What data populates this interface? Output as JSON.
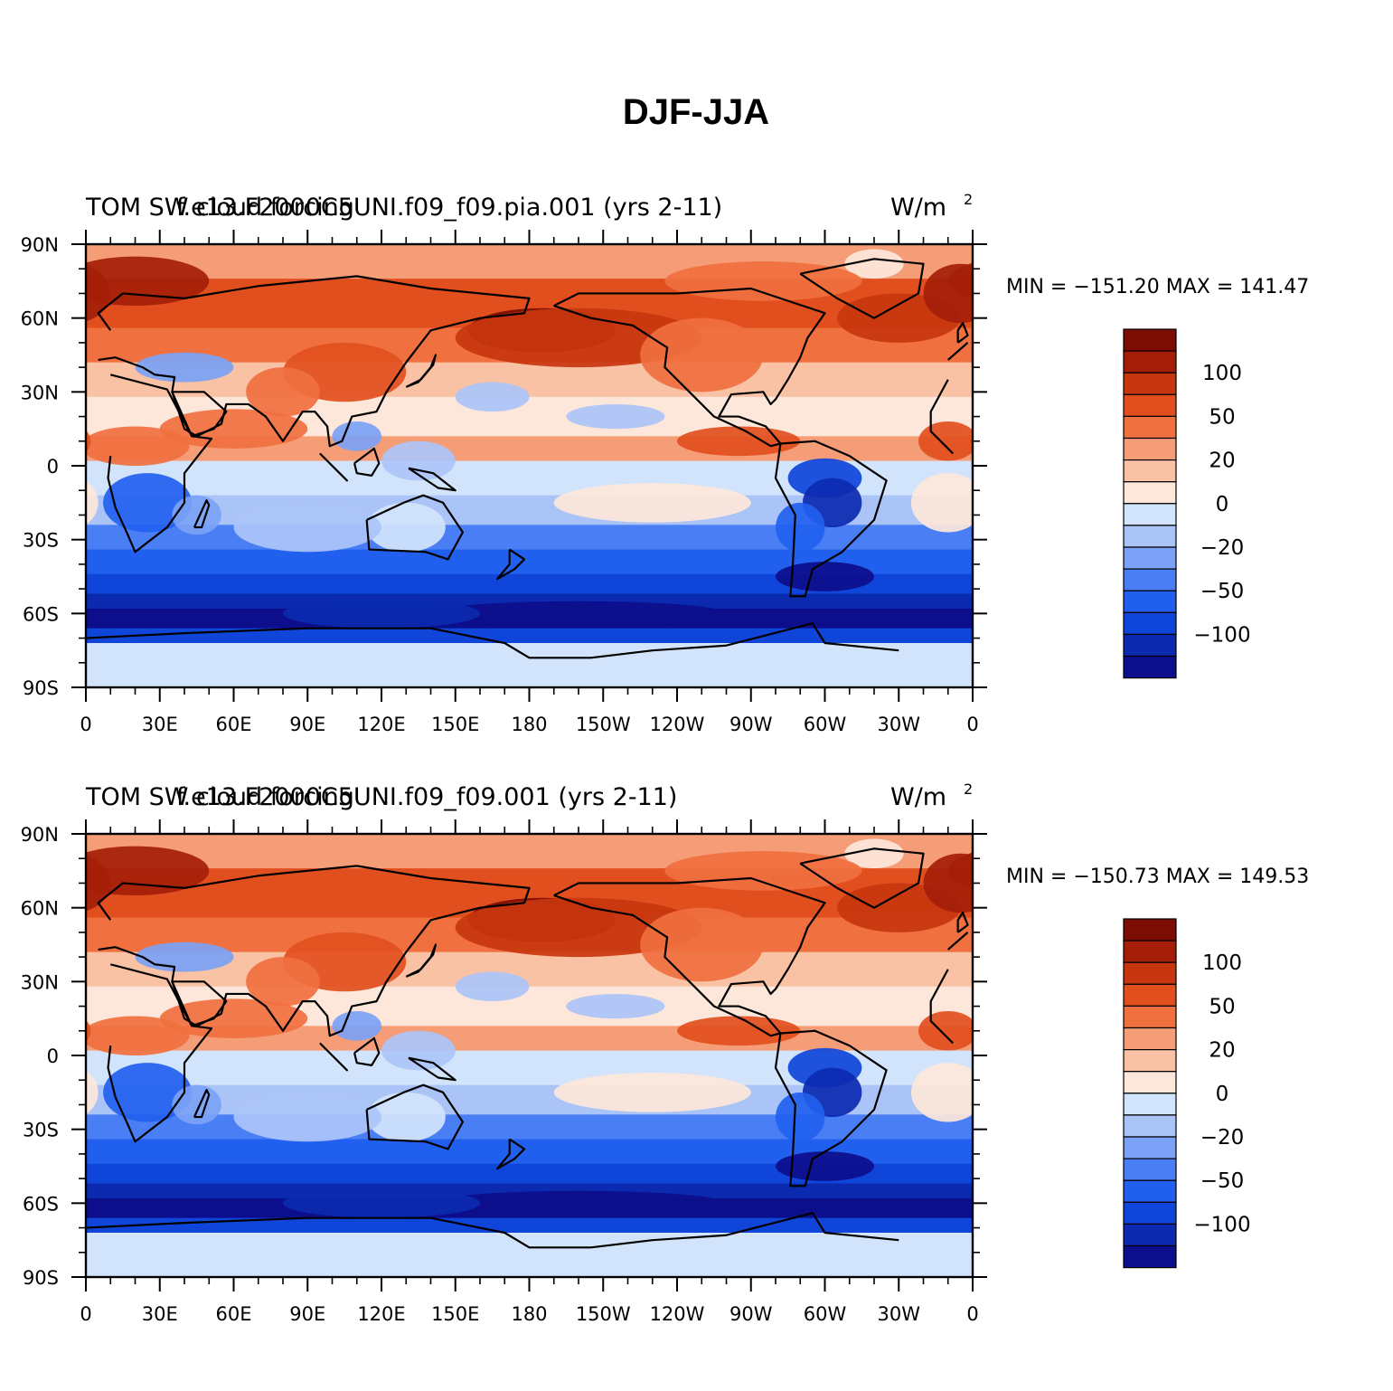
{
  "figure_title": "DJF-JJA",
  "colors": {
    "scale": [
      "#0d0e8c",
      "#0b2ab0",
      "#0f45d9",
      "#2160ef",
      "#4a7ef4",
      "#7ba2f6",
      "#abc4f8",
      "#d2e4fb",
      "#fde7da",
      "#f9c2a5",
      "#f59d76",
      "#f0703f",
      "#e24f1e",
      "#c8360f",
      "#a41e09",
      "#7c0d04"
    ],
    "coast": "#000000",
    "land_ice": "#d2e4fb"
  },
  "panels": [
    {
      "id": "top",
      "left_title": "TOM SW cloud forcing",
      "center_title": "f.e13.F2000C5UNI.f09_f09.pia.001 (yrs 2-11)",
      "units": "W/m",
      "units_sup": "2",
      "min_max": "MIN = −151.20 MAX = 141.47"
    },
    {
      "id": "bottom",
      "left_title": "TOM SW cloud forcing",
      "center_title": "f.e13.F2000C5UNI.f09_f09.001 (yrs 2-11)",
      "units": "W/m",
      "units_sup": "2",
      "min_max": "MIN = −150.73 MAX = 149.53"
    }
  ],
  "lat_ticks": [
    "90N",
    "60N",
    "30N",
    "0",
    "30S",
    "60S",
    "90S"
  ],
  "lon_ticks": [
    "0",
    "30E",
    "60E",
    "90E",
    "120E",
    "150E",
    "180",
    "150W",
    "120W",
    "90W",
    "60W",
    "30W",
    "0"
  ],
  "colorbar_labels": [
    "100",
    "50",
    "20",
    "0",
    "−20",
    "−50",
    "−100"
  ],
  "chart_data": [
    {
      "type": "heatmap",
      "title": "DJF-JJA",
      "field": "TOM SW cloud forcing",
      "case": "f.e13.F2000C5UNI.f09_f09.pia.001 (yrs 2-11)",
      "units": "W/m2",
      "min": -151.2,
      "max": 141.47,
      "x_range": [
        0,
        360
      ],
      "y_range": [
        -90,
        90
      ],
      "contour_levels": [
        -140,
        -120,
        -100,
        -75,
        -50,
        -35,
        -20,
        -10,
        0,
        10,
        20,
        35,
        50,
        75,
        100,
        120,
        140
      ]
    },
    {
      "type": "heatmap",
      "title": "DJF-JJA",
      "field": "TOM SW cloud forcing",
      "case": "f.e13.F2000C5UNI.f09_f09.001 (yrs 2-11)",
      "units": "W/m2",
      "min": -150.73,
      "max": 149.53,
      "x_range": [
        0,
        360
      ],
      "y_range": [
        -90,
        90
      ],
      "contour_levels": [
        -140,
        -120,
        -100,
        -75,
        -50,
        -35,
        -20,
        -10,
        0,
        10,
        20,
        35,
        50,
        75,
        100,
        120,
        140
      ]
    }
  ]
}
